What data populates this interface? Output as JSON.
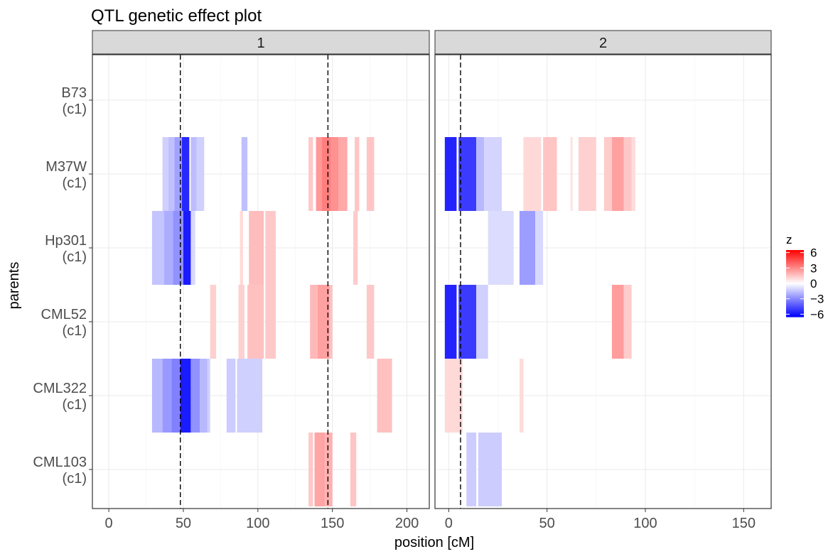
{
  "chart_data": {
    "type": "heatmap",
    "title": "QTL genetic effect plot",
    "xlabel": "position [cM]",
    "ylabel": "parents",
    "rows": [
      "B73\n(c1)",
      "M37W\n(c1)",
      "Hp301\n(c1)",
      "CML52\n(c1)",
      "CML322\n(c1)",
      "CML103\n(c1)"
    ],
    "legend": {
      "title": "z",
      "ticks": [
        6,
        3,
        0,
        -3,
        -6
      ],
      "tick_labels": [
        "6",
        "3",
        "0",
        "−3",
        "−6"
      ],
      "range": [
        -6.5,
        6.5
      ],
      "low_color": "#0000ff",
      "mid_color": "#ffffff",
      "high_color": "#ff0000",
      "placement": "right"
    },
    "grid": true,
    "facets": [
      {
        "label": "1",
        "xlim": [
          -11,
          215
        ],
        "xticks": [
          0,
          50,
          100,
          150,
          200
        ],
        "qtl_lines": [
          48,
          147
        ],
        "cells": [
          {
            "row": 1,
            "x0": 36,
            "x1": 40,
            "z": -1.2
          },
          {
            "row": 1,
            "x0": 40,
            "x1": 44,
            "z": -1.6
          },
          {
            "row": 1,
            "x0": 44,
            "x1": 49,
            "z": -2.4
          },
          {
            "row": 1,
            "x0": 49,
            "x1": 54,
            "z": -5.5
          },
          {
            "row": 1,
            "x0": 55,
            "x1": 59,
            "z": -1.7
          },
          {
            "row": 1,
            "x0": 59,
            "x1": 64,
            "z": -1.2
          },
          {
            "row": 1,
            "x0": 89,
            "x1": 93,
            "z": -1.6
          },
          {
            "row": 1,
            "x0": 134,
            "x1": 137,
            "z": 1.4
          },
          {
            "row": 1,
            "x0": 139,
            "x1": 143,
            "z": 2.6
          },
          {
            "row": 1,
            "x0": 143,
            "x1": 149,
            "z": 3.3
          },
          {
            "row": 1,
            "x0": 149,
            "x1": 154,
            "z": 2.8
          },
          {
            "row": 1,
            "x0": 154,
            "x1": 160,
            "z": 2.2
          },
          {
            "row": 1,
            "x0": 165,
            "x1": 168,
            "z": 1.5
          },
          {
            "row": 1,
            "x0": 173,
            "x1": 178,
            "z": 1.5
          },
          {
            "row": 2,
            "x0": 29,
            "x1": 37,
            "z": -1.5
          },
          {
            "row": 2,
            "x0": 37,
            "x1": 43,
            "z": -2.1
          },
          {
            "row": 2,
            "x0": 43,
            "x1": 50,
            "z": -2.8
          },
          {
            "row": 2,
            "x0": 50,
            "x1": 55,
            "z": -5.8
          },
          {
            "row": 2,
            "x0": 55,
            "x1": 58,
            "z": -1.0
          },
          {
            "row": 2,
            "x0": 88,
            "x1": 90,
            "z": 1.0
          },
          {
            "row": 2,
            "x0": 94,
            "x1": 104,
            "z": 1.7
          },
          {
            "row": 2,
            "x0": 105,
            "x1": 112,
            "z": 1.4
          },
          {
            "row": 2,
            "x0": 164,
            "x1": 167,
            "z": 1.3
          },
          {
            "row": 3,
            "x0": 68,
            "x1": 72,
            "z": 1.2
          },
          {
            "row": 3,
            "x0": 87,
            "x1": 91,
            "z": 1.2
          },
          {
            "row": 3,
            "x0": 93,
            "x1": 104,
            "z": 1.6
          },
          {
            "row": 3,
            "x0": 105,
            "x1": 112,
            "z": 1.4
          },
          {
            "row": 3,
            "x0": 135,
            "x1": 140,
            "z": 1.8
          },
          {
            "row": 3,
            "x0": 140,
            "x1": 148,
            "z": 2.4
          },
          {
            "row": 3,
            "x0": 148,
            "x1": 150,
            "z": 1.6
          },
          {
            "row": 3,
            "x0": 173,
            "x1": 178,
            "z": 1.4
          },
          {
            "row": 4,
            "x0": 29,
            "x1": 36,
            "z": -1.8
          },
          {
            "row": 4,
            "x0": 36,
            "x1": 42,
            "z": -2.6
          },
          {
            "row": 4,
            "x0": 42,
            "x1": 48,
            "z": -3.2
          },
          {
            "row": 4,
            "x0": 48,
            "x1": 55,
            "z": -5.8
          },
          {
            "row": 4,
            "x0": 55,
            "x1": 61,
            "z": -2.8
          },
          {
            "row": 4,
            "x0": 61,
            "x1": 66,
            "z": -1.8
          },
          {
            "row": 4,
            "x0": 66,
            "x1": 68,
            "z": -1.2
          },
          {
            "row": 4,
            "x0": 79,
            "x1": 85,
            "z": -1.3
          },
          {
            "row": 4,
            "x0": 86,
            "x1": 103,
            "z": -1.2
          },
          {
            "row": 4,
            "x0": 180,
            "x1": 190,
            "z": 1.6
          },
          {
            "row": 5,
            "x0": 134,
            "x1": 137,
            "z": 1.4
          },
          {
            "row": 5,
            "x0": 138,
            "x1": 145,
            "z": 2.3
          },
          {
            "row": 5,
            "x0": 145,
            "x1": 150,
            "z": 2.0
          },
          {
            "row": 5,
            "x0": 162,
            "x1": 166,
            "z": 1.5
          }
        ]
      },
      {
        "label": "2",
        "xlim": [
          -7,
          164
        ],
        "xticks": [
          0,
          50,
          100,
          150
        ],
        "qtl_lines": [
          6
        ],
        "cells": [
          {
            "row": 1,
            "x0": -2,
            "x1": 4,
            "z": -5.6
          },
          {
            "row": 1,
            "x0": 5,
            "x1": 14,
            "z": -5.0
          },
          {
            "row": 1,
            "x0": 14,
            "x1": 18,
            "z": -1.8
          },
          {
            "row": 1,
            "x0": 18,
            "x1": 27,
            "z": -1.1
          },
          {
            "row": 1,
            "x0": 38,
            "x1": 47,
            "z": 1.0
          },
          {
            "row": 1,
            "x0": 48,
            "x1": 55,
            "z": 1.5
          },
          {
            "row": 1,
            "x0": 62,
            "x1": 63,
            "z": 0.8
          },
          {
            "row": 1,
            "x0": 66,
            "x1": 75,
            "z": 1.2
          },
          {
            "row": 1,
            "x0": 79,
            "x1": 83,
            "z": 1.3
          },
          {
            "row": 1,
            "x0": 83,
            "x1": 89,
            "z": 2.4
          },
          {
            "row": 1,
            "x0": 89,
            "x1": 93,
            "z": 1.4
          },
          {
            "row": 1,
            "x0": 93,
            "x1": 95,
            "z": 0.9
          },
          {
            "row": 2,
            "x0": 20,
            "x1": 33,
            "z": -0.9
          },
          {
            "row": 2,
            "x0": 36,
            "x1": 44,
            "z": -2.5
          },
          {
            "row": 2,
            "x0": 44,
            "x1": 48,
            "z": -1.0
          },
          {
            "row": 3,
            "x0": -2,
            "x1": 4,
            "z": -5.6
          },
          {
            "row": 3,
            "x0": 5,
            "x1": 14,
            "z": -5.0
          },
          {
            "row": 3,
            "x0": 14,
            "x1": 20,
            "z": -1.2
          },
          {
            "row": 3,
            "x0": 83,
            "x1": 89,
            "z": 2.5
          },
          {
            "row": 3,
            "x0": 89,
            "x1": 93,
            "z": 1.3
          },
          {
            "row": 4,
            "x0": -2,
            "x1": 7,
            "z": 1.0
          },
          {
            "row": 4,
            "x0": 36,
            "x1": 38,
            "z": 0.9
          },
          {
            "row": 5,
            "x0": 9,
            "x1": 14,
            "z": -1.3
          },
          {
            "row": 5,
            "x0": 15,
            "x1": 27,
            "z": -1.3
          }
        ]
      }
    ]
  }
}
